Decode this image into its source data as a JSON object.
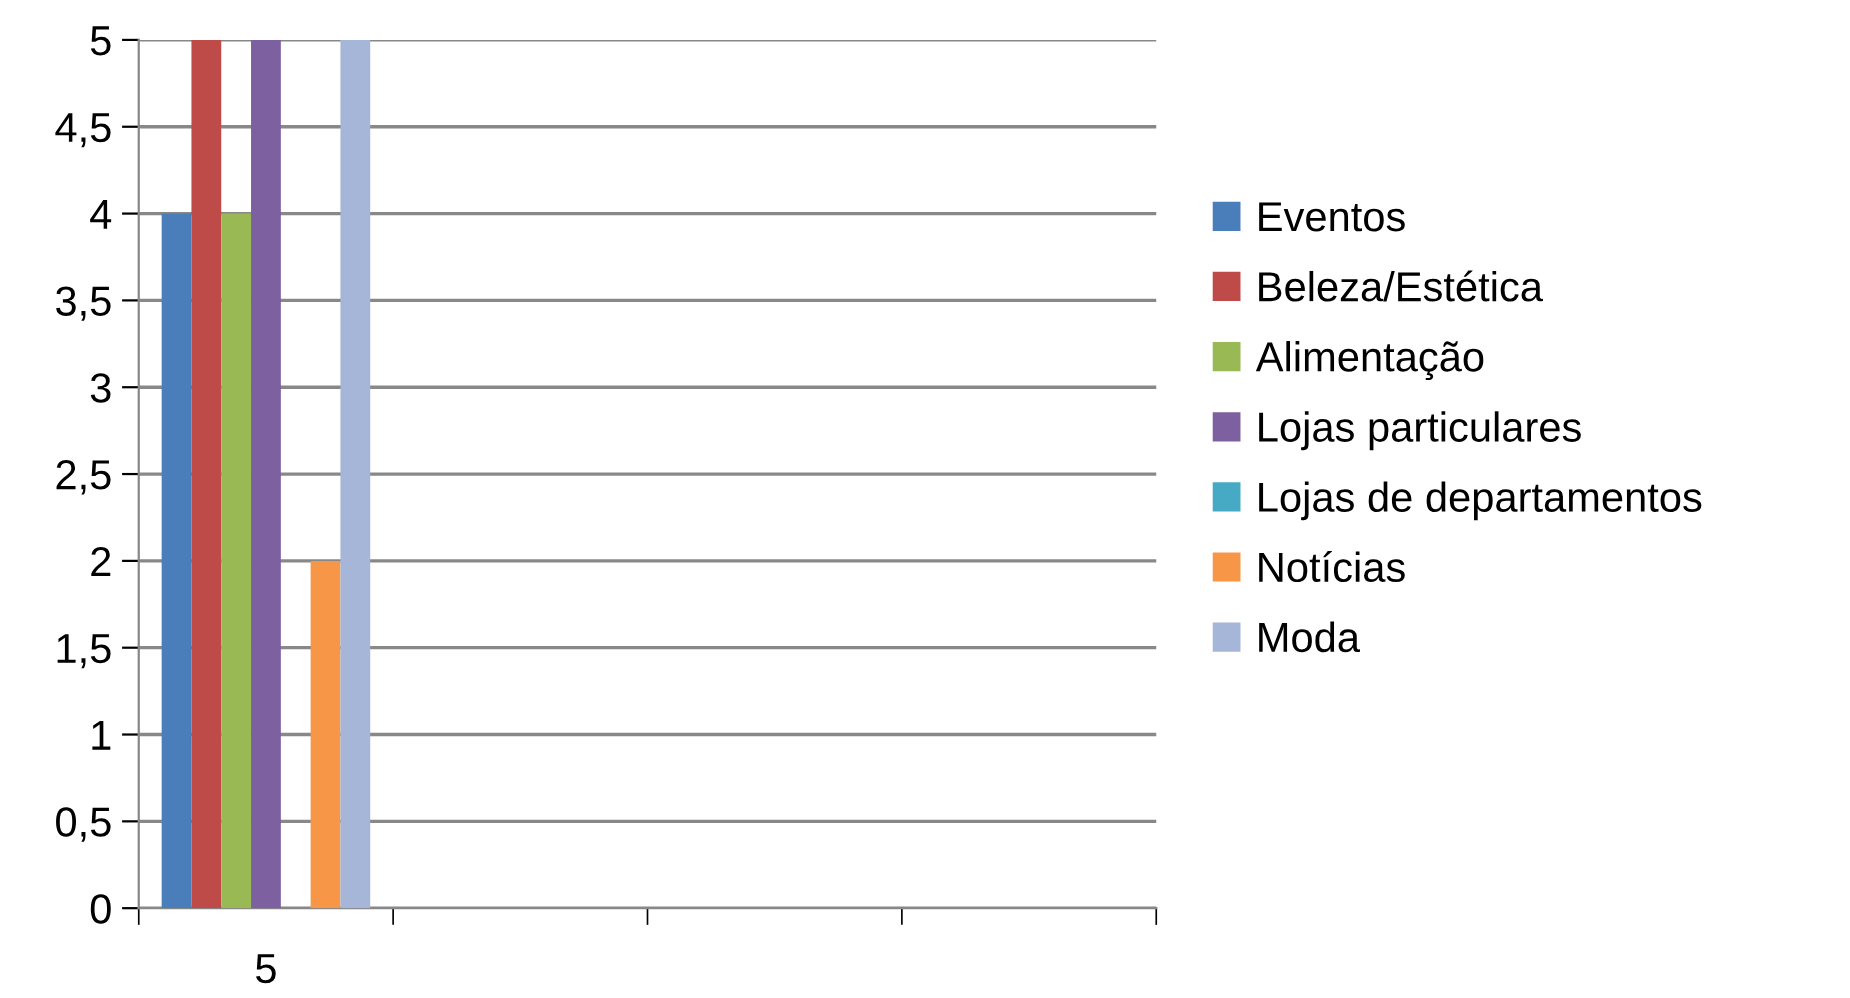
{
  "chart_data": {
    "type": "bar",
    "categories": [
      "5",
      null,
      null,
      null
    ],
    "series": [
      {
        "name": "Eventos",
        "color": "#4a7ebb",
        "values": [
          4,
          null,
          null,
          null
        ]
      },
      {
        "name": "Beleza/Estética",
        "color": "#be4b48",
        "values": [
          5,
          null,
          null,
          null
        ]
      },
      {
        "name": "Alimentação",
        "color": "#98b954",
        "values": [
          4,
          null,
          null,
          null
        ]
      },
      {
        "name": "Lojas particulares",
        "color": "#7d60a0",
        "values": [
          5,
          null,
          null,
          null
        ]
      },
      {
        "name": "Lojas de departamentos",
        "color": "#46aac5",
        "values": [
          0,
          null,
          null,
          null
        ]
      },
      {
        "name": "Notícias",
        "color": "#f79646",
        "values": [
          2,
          null,
          null,
          null
        ]
      },
      {
        "name": "Moda",
        "color": "#a5b6d9",
        "values": [
          5,
          null,
          null,
          null
        ]
      }
    ],
    "ylim": [
      0,
      5
    ],
    "yticks": [
      0,
      {
        "value": 0.5,
        "label": "0,5"
      },
      1,
      {
        "value": 1.5,
        "label": "1,5"
      },
      2,
      {
        "value": 2.5,
        "label": "2,5"
      },
      3,
      {
        "value": 3.5,
        "label": "3,5"
      },
      4,
      {
        "value": 4.5,
        "label": "4,5"
      },
      5
    ],
    "grid": "y",
    "legend": "right"
  }
}
